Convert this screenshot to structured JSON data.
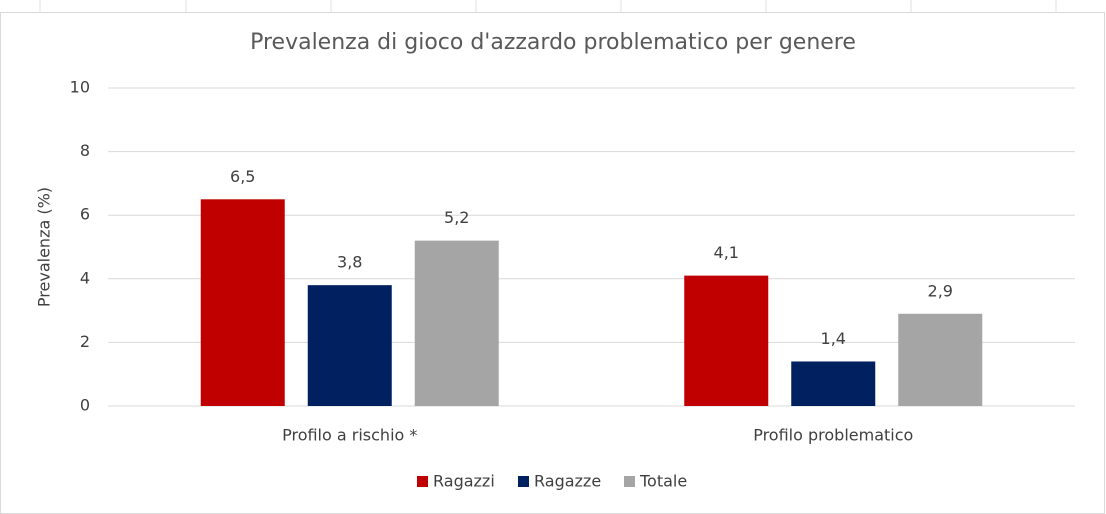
{
  "chart_data": {
    "type": "bar",
    "title": "Prevalenza di gioco d'azzardo problematico per genere",
    "y_label": "Prevalenza (%)",
    "categories": [
      "Profilo a rischio *",
      "Profilo problematico"
    ],
    "series": [
      {
        "name": "Ragazzi",
        "color": "#c00000",
        "values": [
          6.5,
          4.1
        ],
        "value_labels": [
          "6,5",
          "4,1"
        ]
      },
      {
        "name": "Ragazze",
        "color": "#002060",
        "values": [
          3.8,
          1.4
        ],
        "value_labels": [
          "3,8",
          "1,4"
        ]
      },
      {
        "name": "Totale",
        "color": "#a5a5a5",
        "values": [
          5.2,
          2.9
        ],
        "value_labels": [
          "5,2",
          "2,9"
        ]
      }
    ],
    "ylim": [
      0,
      10
    ],
    "yticks": [
      0,
      2,
      4,
      6,
      8,
      10
    ],
    "grid": true,
    "legend": "bottom"
  }
}
